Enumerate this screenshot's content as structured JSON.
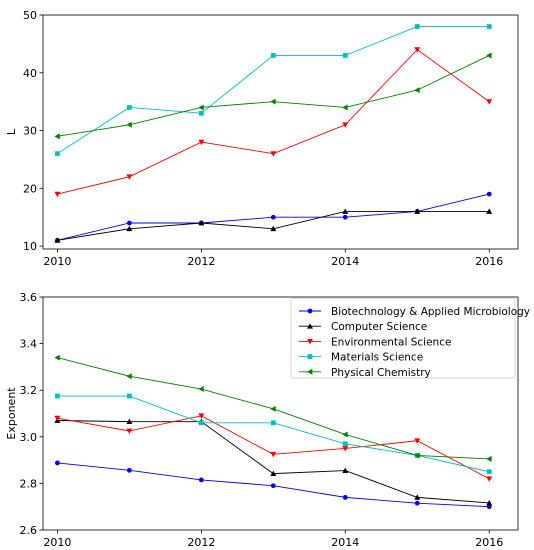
{
  "chart_data": [
    {
      "type": "line",
      "ylabel": "L",
      "xlabel": "",
      "xlim": [
        2009.8,
        2016.4
      ],
      "ylim": [
        9.5,
        50
      ],
      "xticks": [
        2010,
        2012,
        2014,
        2016
      ],
      "yticks": [
        10,
        20,
        30,
        40,
        50
      ],
      "x": [
        2010,
        2011,
        2012,
        2013,
        2014,
        2015,
        2016
      ],
      "series": [
        {
          "color": "#0000ff",
          "marker": "circle",
          "values": [
            11,
            14,
            14,
            15,
            15,
            16,
            19
          ]
        },
        {
          "color": "#000000",
          "marker": "triangle",
          "values": [
            11,
            13,
            14,
            13,
            16,
            16,
            16
          ]
        },
        {
          "color": "#ff0000",
          "marker": "triangle-down",
          "values": [
            19,
            22,
            28,
            26,
            31,
            44,
            35
          ]
        },
        {
          "color": "#00bfbf",
          "marker": "square",
          "values": [
            26,
            34,
            33,
            43,
            43,
            48,
            48
          ]
        },
        {
          "color": "#008000",
          "marker": "triangle-left",
          "values": [
            29,
            31,
            34,
            35,
            34,
            37,
            43
          ]
        }
      ]
    },
    {
      "type": "line",
      "ylabel": "Exponent",
      "xlabel": "",
      "xlim": [
        2009.8,
        2016.4
      ],
      "ylim": [
        2.6,
        3.6
      ],
      "xticks": [
        2010,
        2012,
        2014,
        2016
      ],
      "yticks": [
        2.6,
        2.8,
        3.0,
        3.2,
        3.4,
        3.6
      ],
      "legend_position": "top-right",
      "x": [
        2010,
        2011,
        2012,
        2013,
        2014,
        2015,
        2016
      ],
      "series": [
        {
          "name": "Biotechnology & Applied Microbiology",
          "color": "#0000ff",
          "marker": "circle",
          "values": [
            2.888,
            2.856,
            2.815,
            2.79,
            2.74,
            2.715,
            2.7
          ]
        },
        {
          "name": "Computer Science",
          "color": "#000000",
          "marker": "triangle",
          "values": [
            3.07,
            3.065,
            3.065,
            2.842,
            2.855,
            2.74,
            2.716
          ]
        },
        {
          "name": "Environmental Science",
          "color": "#ff0000",
          "marker": "triangle-down",
          "values": [
            3.08,
            3.025,
            3.09,
            2.925,
            2.95,
            2.983,
            2.82
          ]
        },
        {
          "name": "Materials Science",
          "color": "#00bfbf",
          "marker": "square",
          "values": [
            3.175,
            3.175,
            3.06,
            3.06,
            2.97,
            2.92,
            2.85
          ]
        },
        {
          "name": "Physical Chemistry",
          "color": "#008000",
          "marker": "triangle-left",
          "values": [
            3.34,
            3.26,
            3.205,
            3.12,
            3.01,
            2.92,
            2.905
          ]
        }
      ]
    }
  ]
}
